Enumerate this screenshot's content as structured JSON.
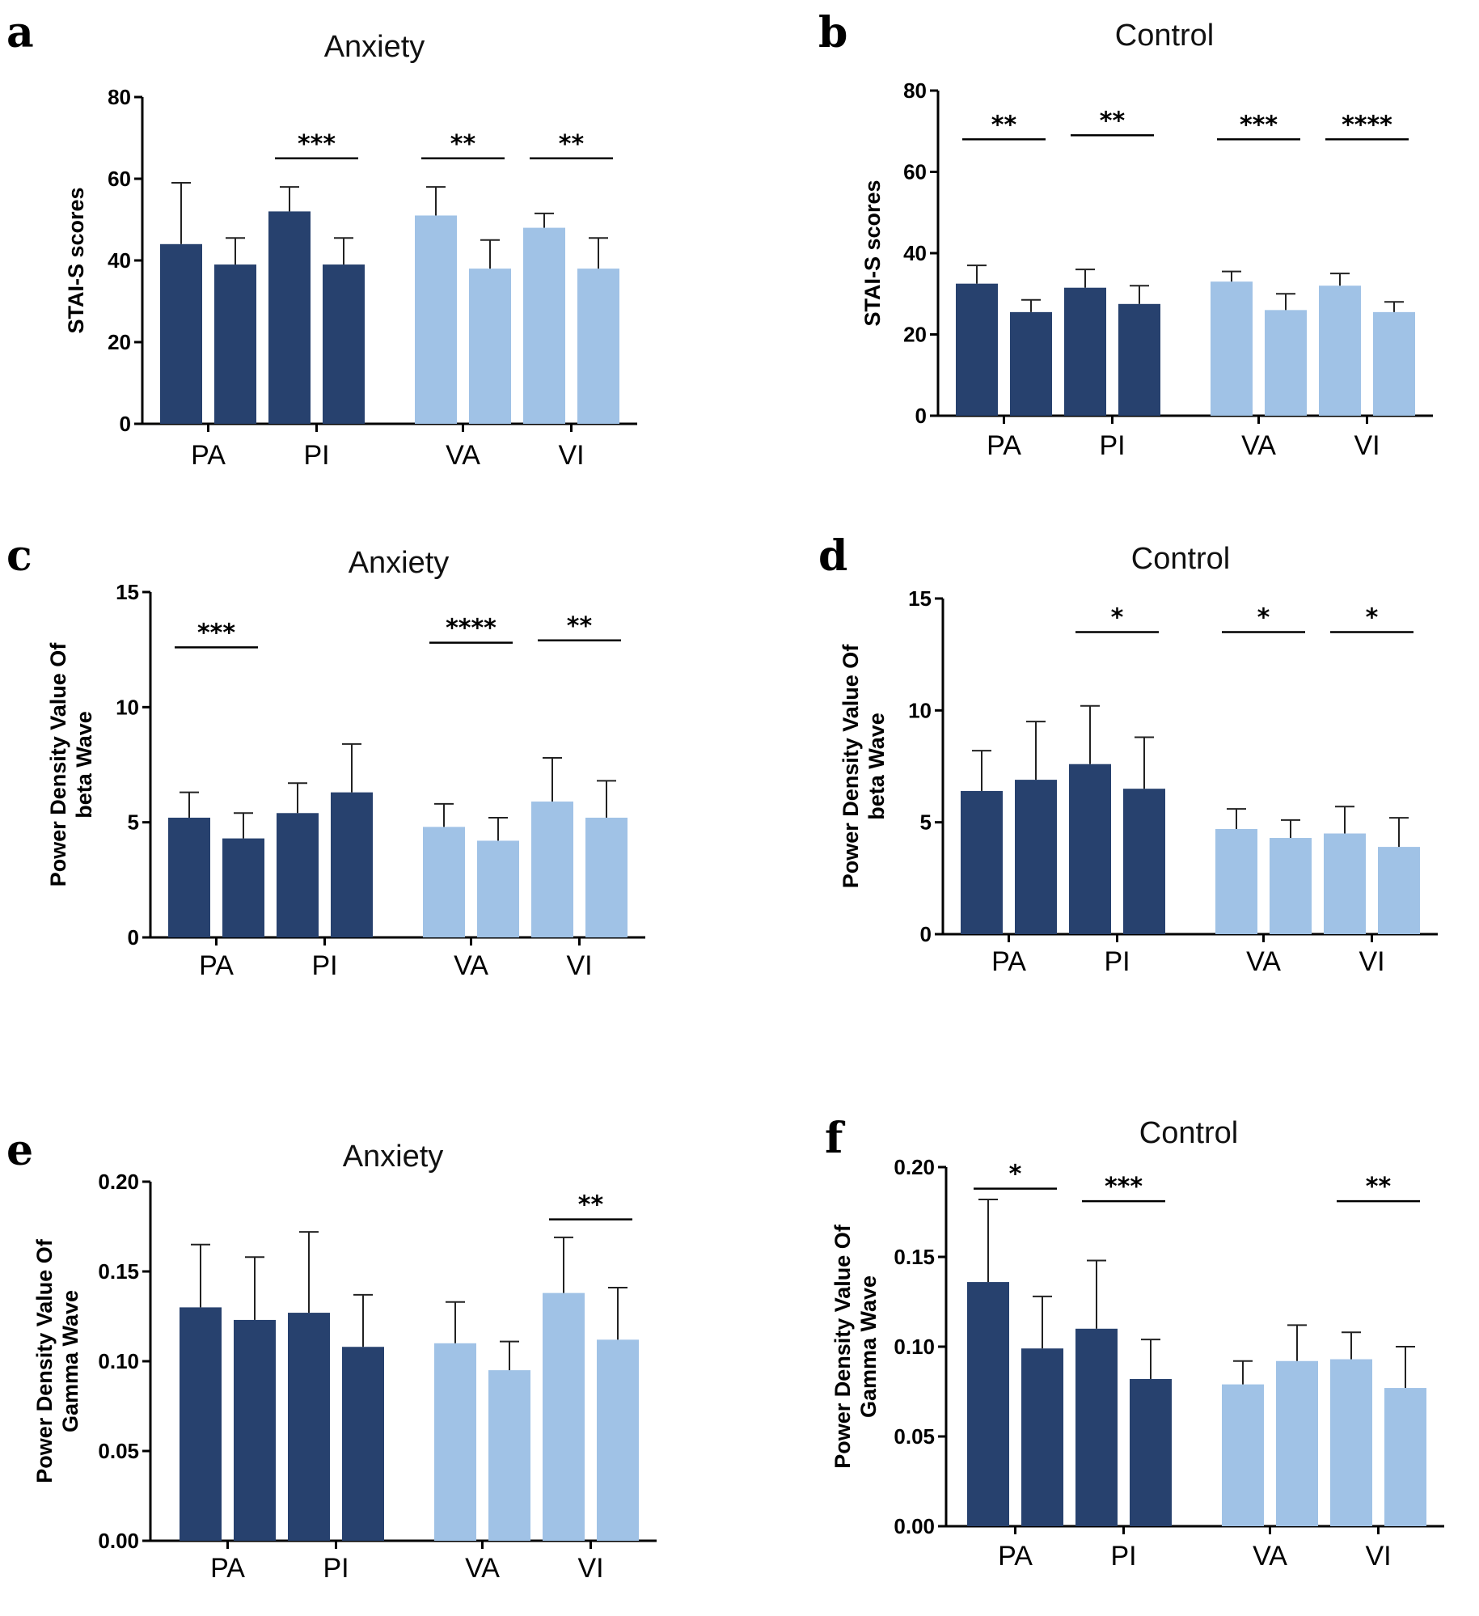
{
  "colors": {
    "dark": "#27416e",
    "light": "#a0c2e6",
    "axis": "#000000"
  },
  "chart_data": [
    {
      "panel": "a",
      "type": "bar",
      "title": "Anxiety",
      "ylabel": "STAI-S scores",
      "ylim": [
        0,
        80
      ],
      "yticks": [
        "0",
        "20",
        "40",
        "60",
        "80"
      ],
      "groups": [
        "PA",
        "PI",
        "VA",
        "VI"
      ],
      "values": [
        44,
        39,
        52,
        39,
        51,
        38,
        48,
        38
      ],
      "errors": [
        15,
        6.5,
        6,
        6.5,
        7,
        7,
        3.5,
        7.5
      ],
      "colors": [
        "dark",
        "dark",
        "dark",
        "dark",
        "light",
        "light",
        "light",
        "light"
      ],
      "significance": [
        {
          "group": "PI",
          "label": "***",
          "y": 65
        },
        {
          "group": "VA",
          "label": "**",
          "y": 65
        },
        {
          "group": "VI",
          "label": "**",
          "y": 65
        }
      ]
    },
    {
      "panel": "b",
      "type": "bar",
      "title": "Control",
      "ylabel": "STAI-S scores",
      "ylim": [
        0,
        80
      ],
      "yticks": [
        "0",
        "20",
        "40",
        "60",
        "80"
      ],
      "groups": [
        "PA",
        "PI",
        "VA",
        "VI"
      ],
      "values": [
        32.5,
        25.5,
        31.5,
        27.5,
        33,
        26,
        32,
        25.5
      ],
      "errors": [
        4.5,
        3,
        4.5,
        4.5,
        2.5,
        4,
        3,
        2.5
      ],
      "colors": [
        "dark",
        "dark",
        "dark",
        "dark",
        "light",
        "light",
        "light",
        "light"
      ],
      "significance": [
        {
          "group": "PA",
          "label": "**",
          "y": 68
        },
        {
          "group": "PI",
          "label": "**",
          "y": 69
        },
        {
          "group": "VA",
          "label": "***",
          "y": 68
        },
        {
          "group": "VI",
          "label": "****",
          "y": 68
        }
      ]
    },
    {
      "panel": "c",
      "type": "bar",
      "title": "Anxiety",
      "ylabel": "Power Density Value Of\nbeta Wave",
      "ylim": [
        0,
        15
      ],
      "yticks": [
        "0",
        "5",
        "10",
        "15"
      ],
      "groups": [
        "PA",
        "PI",
        "VA",
        "VI"
      ],
      "values": [
        5.2,
        4.3,
        5.4,
        6.3,
        4.8,
        4.2,
        5.9,
        5.2
      ],
      "errors": [
        1.1,
        1.1,
        1.3,
        2.1,
        1.0,
        1.0,
        1.9,
        1.6
      ],
      "colors": [
        "dark",
        "dark",
        "dark",
        "dark",
        "light",
        "light",
        "light",
        "light"
      ],
      "significance": [
        {
          "group": "PA",
          "label": "***",
          "y": 12.6
        },
        {
          "group": "VA",
          "label": "****",
          "y": 12.8
        },
        {
          "group": "VI",
          "label": "**",
          "y": 12.9
        }
      ]
    },
    {
      "panel": "d",
      "type": "bar",
      "title": "Control",
      "ylabel": "Power Density Value Of\nbeta Wave",
      "ylim": [
        0,
        15
      ],
      "yticks": [
        "0",
        "5",
        "10",
        "15"
      ],
      "groups": [
        "PA",
        "PI",
        "VA",
        "VI"
      ],
      "values": [
        6.4,
        6.9,
        7.6,
        6.5,
        4.7,
        4.3,
        4.5,
        3.9
      ],
      "errors": [
        1.8,
        2.6,
        2.6,
        2.3,
        0.9,
        0.8,
        1.2,
        1.3
      ],
      "colors": [
        "dark",
        "dark",
        "dark",
        "dark",
        "light",
        "light",
        "light",
        "light"
      ],
      "significance": [
        {
          "group": "PI",
          "label": "*",
          "y": 13.5
        },
        {
          "group": "VA",
          "label": "*",
          "y": 13.5
        },
        {
          "group": "VI",
          "label": "*",
          "y": 13.5
        }
      ]
    },
    {
      "panel": "e",
      "type": "bar",
      "title": "Anxiety",
      "ylabel": "Power Density Value Of\nGamma Wave",
      "ylim": [
        0,
        0.2
      ],
      "yticks": [
        "0.00",
        "0.05",
        "0.10",
        "0.15",
        "0.20"
      ],
      "groups": [
        "PA",
        "PI",
        "VA",
        "VI"
      ],
      "values": [
        0.13,
        0.123,
        0.127,
        0.108,
        0.11,
        0.095,
        0.138,
        0.112
      ],
      "errors": [
        0.035,
        0.035,
        0.045,
        0.029,
        0.023,
        0.016,
        0.031,
        0.029
      ],
      "colors": [
        "dark",
        "dark",
        "dark",
        "dark",
        "light",
        "light",
        "light",
        "light"
      ],
      "significance": [
        {
          "group": "VI",
          "label": "**",
          "y": 0.179
        }
      ]
    },
    {
      "panel": "f",
      "type": "bar",
      "title": "Control",
      "ylabel": "Power Density Value Of\nGamma Wave",
      "ylim": [
        0,
        0.2
      ],
      "yticks": [
        "0.00",
        "0.05",
        "0.10",
        "0.15",
        "0.20"
      ],
      "groups": [
        "PA",
        "PI",
        "VA",
        "VI"
      ],
      "values": [
        0.136,
        0.099,
        0.11,
        0.082,
        0.079,
        0.092,
        0.093,
        0.077
      ],
      "errors": [
        0.046,
        0.029,
        0.038,
        0.022,
        0.013,
        0.02,
        0.015,
        0.023
      ],
      "colors": [
        "dark",
        "dark",
        "dark",
        "dark",
        "light",
        "light",
        "light",
        "light"
      ],
      "significance": [
        {
          "group": "PA",
          "label": "*",
          "y": 0.188
        },
        {
          "group": "PI",
          "label": "***",
          "y": 0.181
        },
        {
          "group": "VI",
          "label": "**",
          "y": 0.181
        }
      ]
    }
  ]
}
